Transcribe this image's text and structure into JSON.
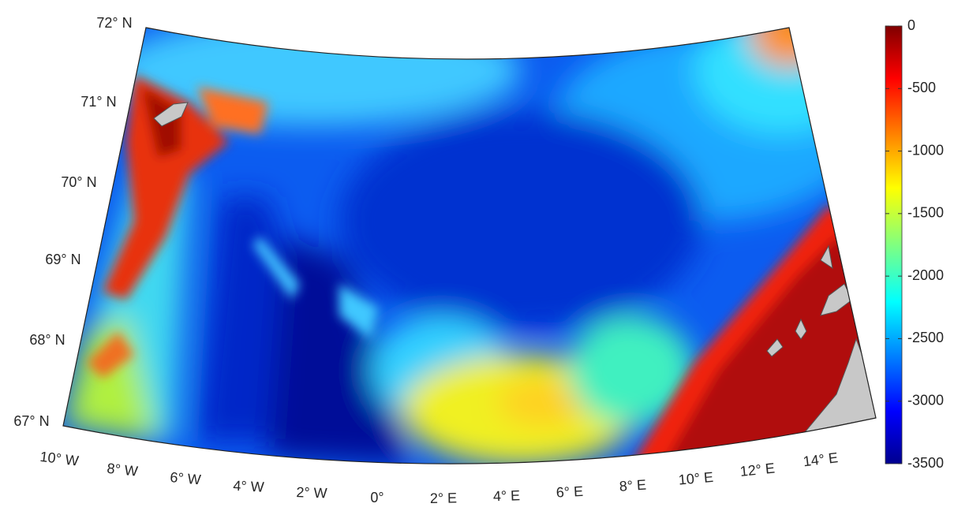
{
  "map": {
    "latitude_labels": [
      "72° N",
      "71° N",
      "70° N",
      "69° N",
      "68° N",
      "67° N"
    ],
    "longitude_labels": [
      "10° W",
      "8° W",
      "6° W",
      "4° W",
      "2° W",
      "0°",
      "2° E",
      "4° E",
      "6° E",
      "8° E",
      "10° E",
      "12° E",
      "14° E"
    ]
  },
  "colorbar": {
    "limits": [
      -3500,
      0
    ],
    "ticks": [
      0,
      -500,
      -1000,
      -1500,
      -2000,
      -2500,
      -3000,
      -3500
    ]
  }
}
